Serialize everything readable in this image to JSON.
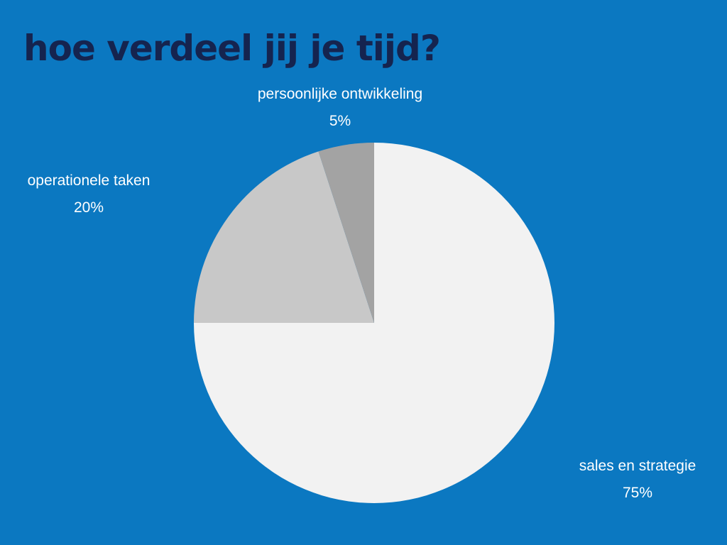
{
  "chart_data": {
    "type": "pie",
    "title": "hoe verdeel jij je tijd?",
    "categories": [
      "sales en strategie",
      "operationele taken",
      "persoonlijke ontwikkeling"
    ],
    "values": [
      75,
      20,
      5
    ],
    "value_labels": [
      "75%",
      "20%",
      "5%"
    ],
    "colors": [
      "#f2f2f2",
      "#c8c8c8",
      "#a3a3a3"
    ],
    "legend": "none",
    "data_labels": "outside"
  }
}
